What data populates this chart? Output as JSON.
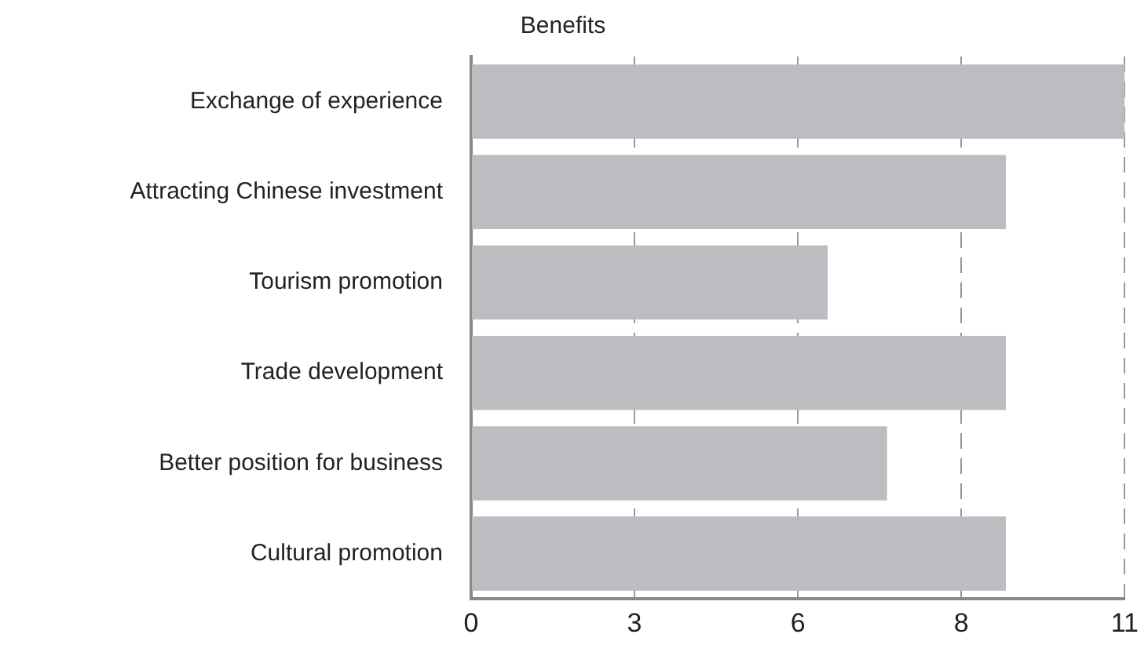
{
  "chart_data": {
    "type": "bar",
    "orientation": "horizontal",
    "title": "Benefits",
    "categories": [
      "Exchange of experience",
      "Attracting Chinese investment",
      "Tourism promotion",
      "Trade development",
      "Better position for business",
      "Cultural promotion"
    ],
    "values": [
      11,
      9,
      6,
      9,
      7,
      9
    ],
    "color": "#bcbdc0",
    "xlim": [
      0,
      11
    ],
    "xticks": [
      0,
      {
        "value": 2.75,
        "label": "3"
      },
      {
        "value": 5.5,
        "label": "6"
      },
      {
        "value": 8.25,
        "label": "8"
      },
      11
    ],
    "grid": "x",
    "line_style": "dashed",
    "legend": false
  }
}
